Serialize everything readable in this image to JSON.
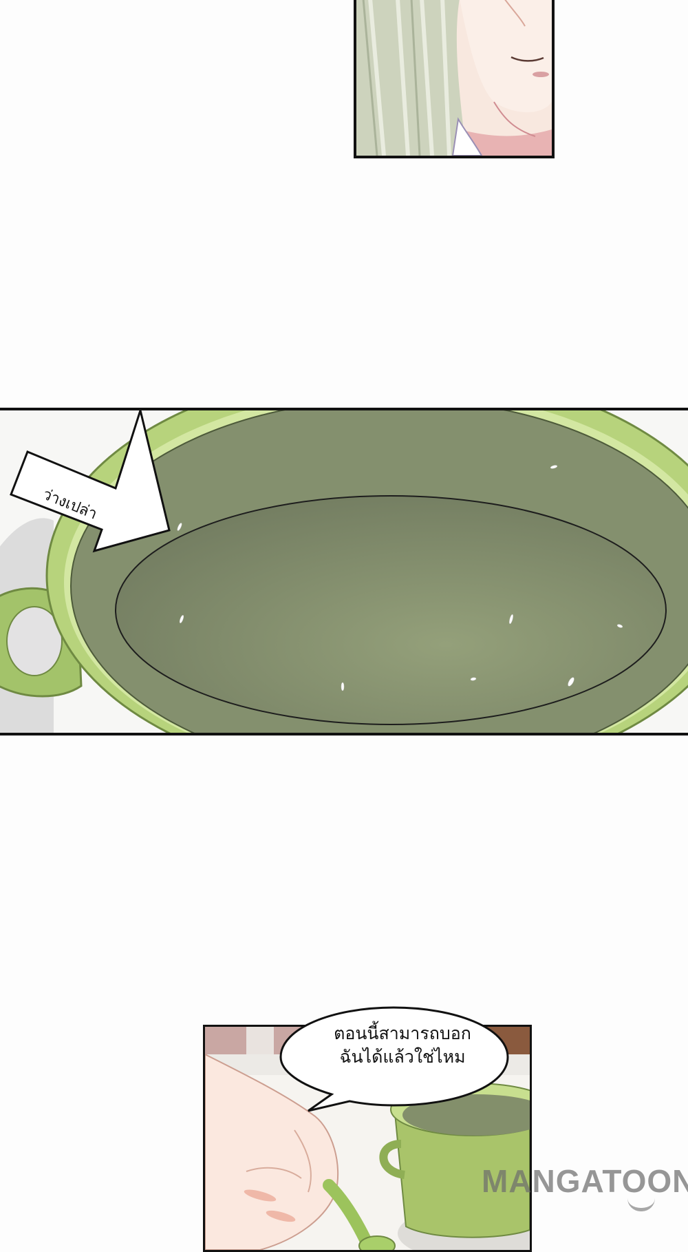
{
  "panels": [
    {
      "id": "top",
      "subject": "character-face-closeup"
    },
    {
      "id": "pot",
      "subject": "empty-green-pot"
    },
    {
      "id": "bottom",
      "subject": "hand-with-spoon-and-pot"
    }
  ],
  "arrow_caption": "ว่างเปล่า",
  "speech_bubble": {
    "line1": "ตอนนี้สามารถบอก",
    "line2": "ฉันได้แล้วใช่ไหม"
  },
  "watermark": "MANGATOON",
  "colors": {
    "background": "#fdfdfd",
    "panel_border": "#111111",
    "pot_green": "#a8c86a",
    "pot_inner": "#7f8c69",
    "hair": "#c9cfb8",
    "skin": "#f7e6dc"
  }
}
